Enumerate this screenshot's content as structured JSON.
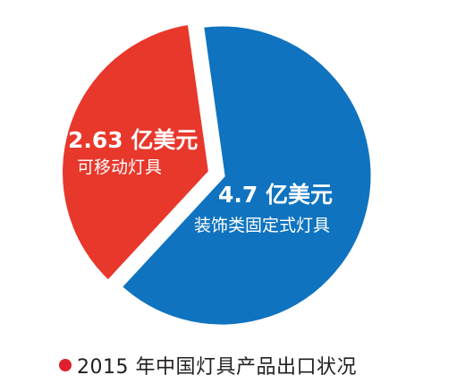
{
  "chart_data": {
    "type": "pie",
    "title": "2015 年中国灯具产品出口状况",
    "unit": "亿美元",
    "slices": [
      {
        "name": "装饰类固定式灯具",
        "value": 4.7,
        "value_label": "4.7 亿美元",
        "color": "#0f73bf"
      },
      {
        "name": "可移动灯具",
        "value": 2.63,
        "value_label": "2.63 亿美元",
        "color": "#e8372b"
      }
    ],
    "legend": "none"
  },
  "caption": {
    "bullet_color": "#e0202e",
    "text": "2015 年中国灯具产品出口状况"
  }
}
